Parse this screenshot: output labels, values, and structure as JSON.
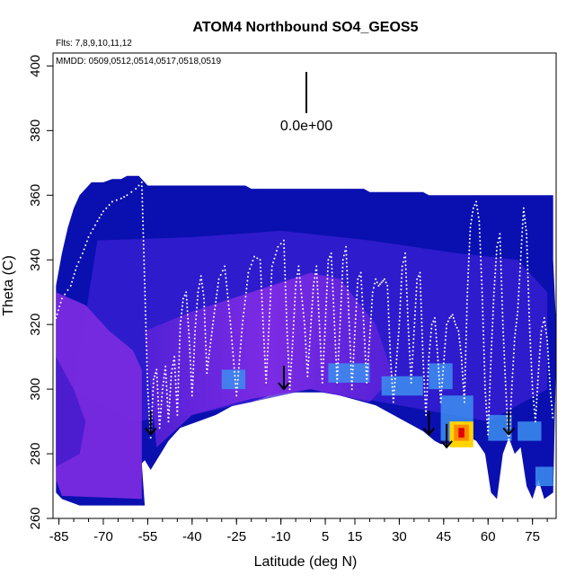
{
  "chart_data": {
    "type": "heatmap",
    "title": "ATOM4 Northbound SO4_GEOS5",
    "notes": [
      "Flts: 7,8,9,10,11,12",
      "MMDD: 0509,0512,0514,0517,0518,0519"
    ],
    "xlabel": "Latitude (deg N)",
    "ylabel": "Theta (C)",
    "xlim": [
      -87,
      83
    ],
    "ylim": [
      260,
      404
    ],
    "x_ticks": [
      -85,
      -70,
      -55,
      -40,
      -25,
      -10,
      5,
      15,
      30,
      45,
      60,
      75
    ],
    "y_ticks": [
      260,
      280,
      300,
      320,
      340,
      360,
      380,
      400
    ],
    "scale_label": "0.0e+00",
    "colors": {
      "background_field": "#0a10b0",
      "mid_field": "#3b1fd6",
      "purple_field": "#7a2be0",
      "light_blue": "#3d8ef0",
      "high_values": [
        "#ffd400",
        "#ff8a00",
        "#e00000"
      ],
      "flight_track": "#ffffff",
      "arrows": "#000000"
    },
    "flight_track_theta": [
      [
        -86,
        322
      ],
      [
        -84,
        328
      ],
      [
        -81,
        332
      ],
      [
        -79,
        338
      ],
      [
        -77,
        342
      ],
      [
        -75,
        347
      ],
      [
        -72,
        352
      ],
      [
        -70,
        355
      ],
      [
        -67,
        358
      ],
      [
        -64,
        359
      ],
      [
        -62,
        360
      ],
      [
        -59,
        362
      ],
      [
        -57,
        364
      ],
      [
        -55,
        300
      ],
      [
        -54,
        285
      ],
      [
        -53,
        303
      ],
      [
        -52,
        306
      ],
      [
        -51,
        288
      ],
      [
        -50,
        300
      ],
      [
        -49,
        307
      ],
      [
        -48,
        290
      ],
      [
        -47,
        305
      ],
      [
        -46,
        310
      ],
      [
        -45,
        292
      ],
      [
        -44,
        320
      ],
      [
        -43,
        328
      ],
      [
        -42,
        330
      ],
      [
        -41,
        316
      ],
      [
        -40,
        298
      ],
      [
        -39,
        318
      ],
      [
        -38,
        330
      ],
      [
        -37,
        335
      ],
      [
        -36,
        328
      ],
      [
        -35,
        305
      ],
      [
        -33,
        320
      ],
      [
        -31,
        334
      ],
      [
        -29,
        338
      ],
      [
        -27,
        320
      ],
      [
        -25,
        298
      ],
      [
        -23,
        320
      ],
      [
        -21,
        336
      ],
      [
        -19,
        341
      ],
      [
        -17,
        340
      ],
      [
        -16,
        320
      ],
      [
        -15,
        302
      ],
      [
        -14,
        320
      ],
      [
        -13,
        338
      ],
      [
        -11,
        344
      ],
      [
        -9,
        346
      ],
      [
        -8,
        320
      ],
      [
        -7,
        300
      ],
      [
        -6,
        315
      ],
      [
        -5,
        332
      ],
      [
        -4,
        338
      ],
      [
        -2,
        320
      ],
      [
        -1,
        304
      ],
      [
        0,
        318
      ],
      [
        1,
        332
      ],
      [
        2,
        338
      ],
      [
        3,
        320
      ],
      [
        4,
        302
      ],
      [
        5,
        320
      ],
      [
        6,
        340
      ],
      [
        7,
        342
      ],
      [
        8,
        322
      ],
      [
        9,
        302
      ],
      [
        10,
        320
      ],
      [
        11,
        340
      ],
      [
        12,
        344
      ],
      [
        13,
        322
      ],
      [
        14,
        300
      ],
      [
        15,
        318
      ],
      [
        16,
        334
      ],
      [
        17,
        336
      ],
      [
        18,
        320
      ],
      [
        19,
        302
      ],
      [
        20,
        316
      ],
      [
        21,
        330
      ],
      [
        22,
        334
      ],
      [
        23,
        332
      ],
      [
        24,
        333
      ],
      [
        25,
        334
      ],
      [
        26,
        332
      ],
      [
        27,
        310
      ],
      [
        28,
        296
      ],
      [
        30,
        320
      ],
      [
        31,
        338
      ],
      [
        32,
        342
      ],
      [
        33,
        320
      ],
      [
        34,
        302
      ],
      [
        35,
        318
      ],
      [
        36,
        334
      ],
      [
        37,
        336
      ],
      [
        38,
        310
      ],
      [
        39,
        292
      ],
      [
        40,
        310
      ],
      [
        41,
        320
      ],
      [
        42,
        322
      ],
      [
        43,
        310
      ],
      [
        44,
        296
      ],
      [
        45,
        308
      ],
      [
        46,
        320
      ],
      [
        47,
        322
      ],
      [
        48,
        323
      ],
      [
        49,
        320
      ],
      [
        50,
        318
      ],
      [
        51,
        310
      ],
      [
        52,
        296
      ],
      [
        53,
        330
      ],
      [
        54,
        350
      ],
      [
        55,
        356
      ],
      [
        56,
        358
      ],
      [
        57,
        352
      ],
      [
        58,
        330
      ],
      [
        59,
        300
      ],
      [
        60,
        286
      ],
      [
        61,
        310
      ],
      [
        62,
        330
      ],
      [
        63,
        344
      ],
      [
        64,
        348
      ],
      [
        65,
        320
      ],
      [
        66,
        300
      ],
      [
        67,
        282
      ],
      [
        68,
        300
      ],
      [
        69,
        316
      ],
      [
        70,
        324
      ],
      [
        71,
        340
      ],
      [
        72,
        356
      ],
      [
        73,
        348
      ],
      [
        74,
        320
      ],
      [
        75,
        300
      ],
      [
        76,
        290
      ],
      [
        77,
        305
      ],
      [
        78,
        318
      ],
      [
        79,
        322
      ],
      [
        80,
        315
      ],
      [
        81,
        300
      ],
      [
        82,
        290
      ]
    ],
    "arrows_at": [
      [
        -54,
        286
      ],
      [
        -9,
        300
      ],
      [
        40,
        286
      ],
      [
        46,
        282
      ],
      [
        67,
        286
      ]
    ]
  }
}
